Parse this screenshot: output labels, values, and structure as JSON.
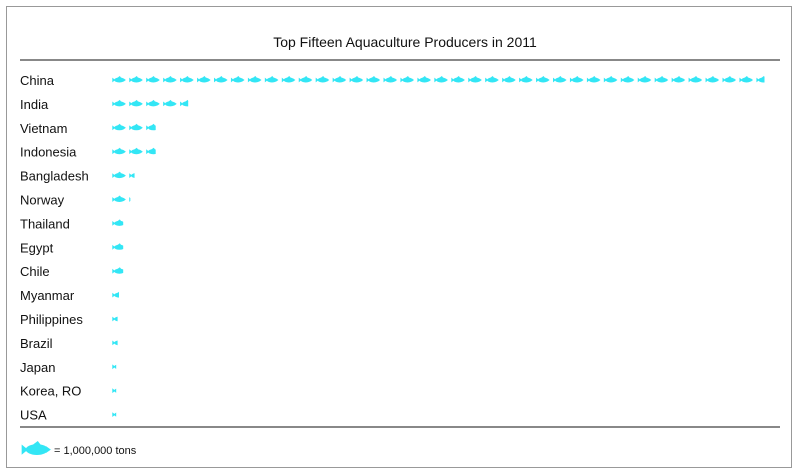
{
  "chart_data": {
    "type": "bar",
    "title": "Top Fifteen Aquaculture Producers in 2011",
    "categories": [
      "China",
      "India",
      "Vietnam",
      "Indonesia",
      "Bangladesh",
      "Norway",
      "Thailand",
      "Egypt",
      "Chile",
      "Myanmar",
      "Philippines",
      "Brazil",
      "Japan",
      "Korea, RO",
      "USA"
    ],
    "series": [
      {
        "values": [
          38.6,
          4.6,
          2.7,
          2.7,
          1.4,
          1.1,
          0.8,
          0.8,
          0.8,
          0.5,
          0.4,
          0.4,
          0.3,
          0.3,
          0.3
        ]
      }
    ],
    "icon": "fish-icon",
    "unit_per_icon": 1000000,
    "color": "#33e6f5",
    "legend": {
      "label": "= 1,000,000 tons",
      "position": "bottom-left"
    },
    "grid": false
  }
}
